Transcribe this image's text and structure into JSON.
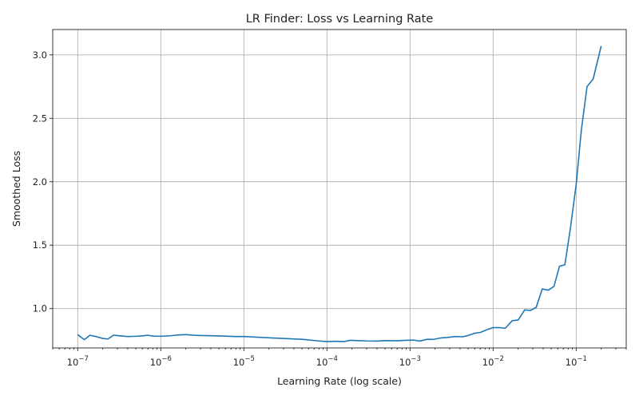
{
  "chart_data": {
    "type": "line",
    "title": "LR Finder: Loss vs Learning Rate",
    "xlabel": "Learning Rate (log scale)",
    "ylabel": "Smoothed Loss",
    "xscale": "log",
    "xlim": [
      5e-08,
      0.4
    ],
    "ylim": [
      0.69,
      3.2
    ],
    "grid": true,
    "legend": "none",
    "x_ticks": [
      {
        "value": 1e-07,
        "base": "10",
        "exp": "−7"
      },
      {
        "value": 1e-06,
        "base": "10",
        "exp": "−6"
      },
      {
        "value": 1e-05,
        "base": "10",
        "exp": "−5"
      },
      {
        "value": 0.0001,
        "base": "10",
        "exp": "−4"
      },
      {
        "value": 0.001,
        "base": "10",
        "exp": "−3"
      },
      {
        "value": 0.01,
        "base": "10",
        "exp": "−2"
      },
      {
        "value": 0.1,
        "base": "10",
        "exp": "−1"
      }
    ],
    "y_ticks": [
      {
        "value": 1.0,
        "label": "1.0"
      },
      {
        "value": 1.5,
        "label": "1.5"
      },
      {
        "value": 2.0,
        "label": "2.0"
      },
      {
        "value": 2.5,
        "label": "2.5"
      },
      {
        "value": 3.0,
        "label": "3.0"
      }
    ],
    "series": [
      {
        "color": "#1f77b4",
        "x": [
          1e-07,
          1.2e-07,
          1.4e-07,
          1.65e-07,
          2e-07,
          2.3e-07,
          2.7e-07,
          3.3e-07,
          4e-07,
          5e-07,
          6e-07,
          7e-07,
          8e-07,
          1e-06,
          1.3e-06,
          1.6e-06,
          2e-06,
          2.5e-06,
          3e-06,
          5e-06,
          8e-06,
          1e-05,
          2e-05,
          5e-05,
          8e-05,
          0.0001,
          0.00013,
          0.00016,
          0.00019,
          0.00023,
          0.0003,
          0.0004,
          0.0005,
          0.0006,
          0.0007,
          0.0009,
          0.0011,
          0.0013,
          0.0016,
          0.0019,
          0.0023,
          0.0028,
          0.0035,
          0.0043,
          0.005,
          0.006,
          0.007,
          0.0085,
          0.01,
          0.012,
          0.014,
          0.017,
          0.02,
          0.024,
          0.028,
          0.033,
          0.039,
          0.046,
          0.054,
          0.063,
          0.073,
          0.085,
          0.1,
          0.115,
          0.135,
          0.16,
          0.2
        ],
        "y": [
          0.795,
          0.755,
          0.79,
          0.78,
          0.765,
          0.76,
          0.79,
          0.785,
          0.78,
          0.782,
          0.785,
          0.79,
          0.783,
          0.782,
          0.786,
          0.792,
          0.795,
          0.79,
          0.788,
          0.785,
          0.78,
          0.78,
          0.77,
          0.758,
          0.745,
          0.74,
          0.742,
          0.74,
          0.75,
          0.748,
          0.745,
          0.744,
          0.748,
          0.747,
          0.746,
          0.75,
          0.752,
          0.744,
          0.758,
          0.757,
          0.768,
          0.772,
          0.78,
          0.778,
          0.788,
          0.806,
          0.812,
          0.835,
          0.85,
          0.85,
          0.845,
          0.905,
          0.91,
          0.99,
          0.985,
          1.01,
          1.155,
          1.145,
          1.175,
          1.335,
          1.345,
          1.63,
          1.98,
          2.4,
          2.75,
          2.81,
          3.07
        ]
      }
    ]
  }
}
